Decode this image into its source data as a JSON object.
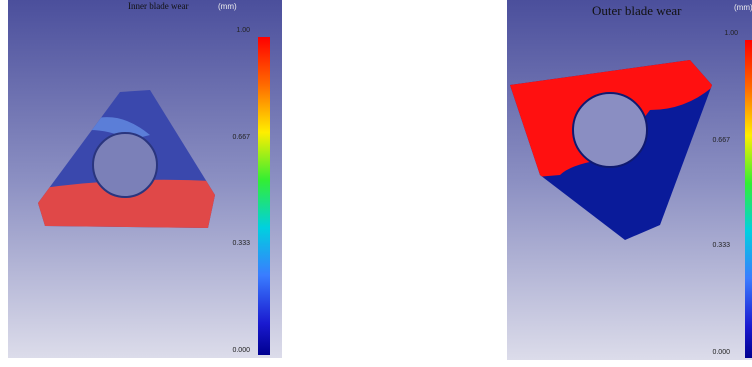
{
  "panels": [
    {
      "title": "Inner blade wear",
      "unit": "(mm)",
      "scale_labels": [
        "1.00",
        "0.667",
        "0.333",
        "0.000"
      ]
    },
    {
      "title": "Outer blade wear",
      "unit": "(mm)",
      "scale_labels": [
        "1.00",
        "0.667",
        "0.333",
        "0.000"
      ]
    }
  ]
}
